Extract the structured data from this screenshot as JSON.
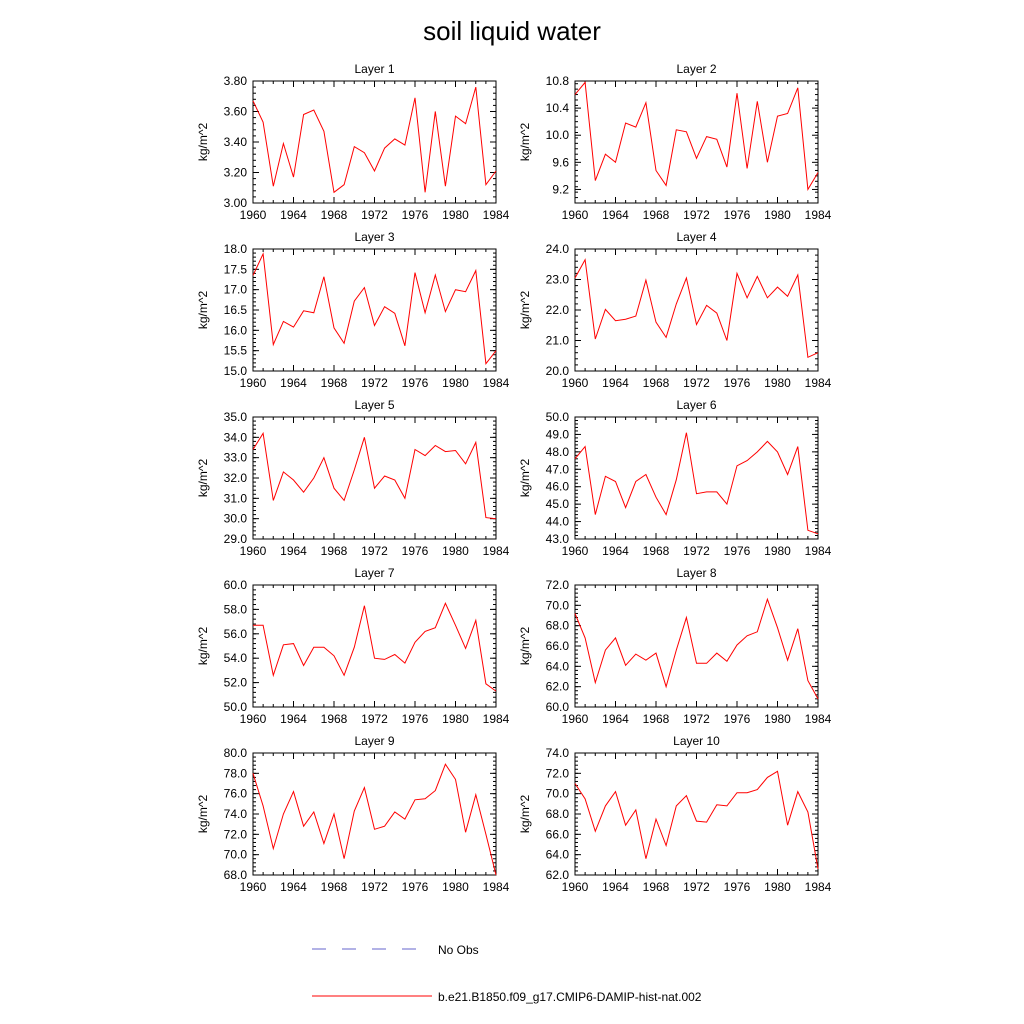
{
  "title": "soil liquid water",
  "legend": {
    "entries": [
      {
        "label": "No Obs",
        "color": "#6666cc",
        "style": "dashed"
      },
      {
        "label": "b.e21.B1850.f09_g17.CMIP6-DAMIP-hist-nat.002",
        "color": "#ff0000",
        "style": "solid"
      }
    ]
  },
  "chart_data": [
    {
      "type": "line",
      "title": "Layer 1",
      "ylabel": "kg/m^2",
      "xlim": [
        1960,
        1984
      ],
      "ylim": [
        3.0,
        3.8
      ],
      "xticks": [
        "1960",
        "1964",
        "1968",
        "1972",
        "1976",
        "1980",
        "1984"
      ],
      "yticks": [
        "3.00",
        "3.20",
        "3.40",
        "3.60",
        "3.80"
      ],
      "x": [
        1960,
        1961,
        1962,
        1963,
        1964,
        1965,
        1966,
        1967,
        1968,
        1969,
        1970,
        1971,
        1972,
        1973,
        1974,
        1975,
        1976,
        1977,
        1978,
        1979,
        1980,
        1981,
        1982,
        1983,
        1984
      ],
      "series": [
        {
          "name": "b.e21.B1850.f09_g17.CMIP6-DAMIP-hist-nat.002",
          "color": "#ff0000",
          "values": [
            3.67,
            3.53,
            3.11,
            3.39,
            3.17,
            3.58,
            3.61,
            3.47,
            3.07,
            3.12,
            3.37,
            3.33,
            3.21,
            3.36,
            3.42,
            3.38,
            3.69,
            3.07,
            3.6,
            3.11,
            3.57,
            3.52,
            3.76,
            3.12,
            3.21
          ]
        }
      ]
    },
    {
      "type": "line",
      "title": "Layer 2",
      "ylabel": "kg/m^2",
      "xlim": [
        1960,
        1984
      ],
      "ylim": [
        9.0,
        10.8
      ],
      "xticks": [
        "1960",
        "1964",
        "1968",
        "1972",
        "1976",
        "1980",
        "1984"
      ],
      "yticks": [
        "9.2",
        "9.6",
        "10.0",
        "10.4",
        "10.8"
      ],
      "x": [
        1960,
        1961,
        1962,
        1963,
        1964,
        1965,
        1966,
        1967,
        1968,
        1969,
        1970,
        1971,
        1972,
        1973,
        1974,
        1975,
        1976,
        1977,
        1978,
        1979,
        1980,
        1981,
        1982,
        1983,
        1984
      ],
      "series": [
        {
          "name": "b.e21.B1850.f09_g17.CMIP6-DAMIP-hist-nat.002",
          "color": "#ff0000",
          "values": [
            10.6,
            10.78,
            9.33,
            9.72,
            9.6,
            10.18,
            10.12,
            10.48,
            9.48,
            9.26,
            10.08,
            10.05,
            9.66,
            9.98,
            9.94,
            9.53,
            10.62,
            9.51,
            10.5,
            9.6,
            10.28,
            10.32,
            10.7,
            9.2,
            9.45
          ]
        }
      ]
    },
    {
      "type": "line",
      "title": "Layer 3",
      "ylabel": "kg/m^2",
      "xlim": [
        1960,
        1984
      ],
      "ylim": [
        15.0,
        18.0
      ],
      "xticks": [
        "1960",
        "1964",
        "1968",
        "1972",
        "1976",
        "1980",
        "1984"
      ],
      "yticks": [
        "15.0",
        "15.5",
        "16.0",
        "16.5",
        "17.0",
        "17.5",
        "18.0"
      ],
      "x": [
        1960,
        1961,
        1962,
        1963,
        1964,
        1965,
        1966,
        1967,
        1968,
        1969,
        1970,
        1971,
        1972,
        1973,
        1974,
        1975,
        1976,
        1977,
        1978,
        1979,
        1980,
        1981,
        1982,
        1983,
        1984
      ],
      "series": [
        {
          "name": "b.e21.B1850.f09_g17.CMIP6-DAMIP-hist-nat.002",
          "color": "#ff0000",
          "values": [
            17.35,
            17.88,
            15.65,
            16.22,
            16.08,
            16.48,
            16.43,
            17.32,
            16.06,
            15.68,
            16.72,
            17.05,
            16.12,
            16.58,
            16.42,
            15.62,
            17.42,
            16.43,
            17.36,
            16.46,
            17.0,
            16.95,
            17.47,
            15.18,
            15.5
          ]
        }
      ]
    },
    {
      "type": "line",
      "title": "Layer 4",
      "ylabel": "kg/m^2",
      "xlim": [
        1960,
        1984
      ],
      "ylim": [
        20.0,
        24.0
      ],
      "xticks": [
        "1960",
        "1964",
        "1968",
        "1972",
        "1976",
        "1980",
        "1984"
      ],
      "yticks": [
        "20.0",
        "21.0",
        "22.0",
        "23.0",
        "24.0"
      ],
      "x": [
        1960,
        1961,
        1962,
        1963,
        1964,
        1965,
        1966,
        1967,
        1968,
        1969,
        1970,
        1971,
        1972,
        1973,
        1974,
        1975,
        1976,
        1977,
        1978,
        1979,
        1980,
        1981,
        1982,
        1983,
        1984
      ],
      "series": [
        {
          "name": "b.e21.B1850.f09_g17.CMIP6-DAMIP-hist-nat.002",
          "color": "#ff0000",
          "values": [
            23.05,
            23.65,
            21.05,
            22.02,
            21.65,
            21.7,
            21.8,
            22.98,
            21.6,
            21.1,
            22.2,
            23.05,
            21.52,
            22.15,
            21.9,
            21.0,
            23.2,
            22.4,
            23.1,
            22.4,
            22.75,
            22.45,
            23.15,
            20.45,
            20.6
          ]
        }
      ]
    },
    {
      "type": "line",
      "title": "Layer 5",
      "ylabel": "kg/m^2",
      "xlim": [
        1960,
        1984
      ],
      "ylim": [
        29.0,
        35.0
      ],
      "xticks": [
        "1960",
        "1964",
        "1968",
        "1972",
        "1976",
        "1980",
        "1984"
      ],
      "yticks": [
        "29.0",
        "30.0",
        "31.0",
        "32.0",
        "33.0",
        "34.0",
        "35.0"
      ],
      "x": [
        1960,
        1961,
        1962,
        1963,
        1964,
        1965,
        1966,
        1967,
        1968,
        1969,
        1970,
        1971,
        1972,
        1973,
        1974,
        1975,
        1976,
        1977,
        1978,
        1979,
        1980,
        1981,
        1982,
        1983,
        1984
      ],
      "series": [
        {
          "name": "b.e21.B1850.f09_g17.CMIP6-DAMIP-hist-nat.002",
          "color": "#ff0000",
          "values": [
            33.4,
            34.2,
            30.9,
            32.3,
            31.9,
            31.3,
            32.0,
            33.0,
            31.5,
            30.9,
            32.4,
            34.0,
            31.5,
            32.1,
            31.9,
            31.0,
            33.4,
            33.1,
            33.6,
            33.3,
            33.35,
            32.7,
            33.75,
            30.05,
            30.0
          ]
        }
      ]
    },
    {
      "type": "line",
      "title": "Layer 6",
      "ylabel": "kg/m^2",
      "xlim": [
        1960,
        1984
      ],
      "ylim": [
        43.0,
        50.0
      ],
      "xticks": [
        "1960",
        "1964",
        "1968",
        "1972",
        "1976",
        "1980",
        "1984"
      ],
      "yticks": [
        "43.0",
        "44.0",
        "45.0",
        "46.0",
        "47.0",
        "48.0",
        "49.0",
        "50.0"
      ],
      "x": [
        1960,
        1961,
        1962,
        1963,
        1964,
        1965,
        1966,
        1967,
        1968,
        1969,
        1970,
        1971,
        1972,
        1973,
        1974,
        1975,
        1976,
        1977,
        1978,
        1979,
        1980,
        1981,
        1982,
        1983,
        1984
      ],
      "series": [
        {
          "name": "b.e21.B1850.f09_g17.CMIP6-DAMIP-hist-nat.002",
          "color": "#ff0000",
          "values": [
            47.6,
            48.3,
            44.4,
            46.6,
            46.3,
            44.8,
            46.3,
            46.7,
            45.4,
            44.4,
            46.4,
            49.1,
            45.6,
            45.7,
            45.7,
            45.0,
            47.2,
            47.5,
            48.0,
            48.6,
            48.0,
            46.7,
            48.3,
            43.5,
            43.3
          ]
        }
      ]
    },
    {
      "type": "line",
      "title": "Layer 7",
      "ylabel": "kg/m^2",
      "xlim": [
        1960,
        1984
      ],
      "ylim": [
        50.0,
        60.0
      ],
      "xticks": [
        "1960",
        "1964",
        "1968",
        "1972",
        "1976",
        "1980",
        "1984"
      ],
      "yticks": [
        "50.0",
        "52.0",
        "54.0",
        "56.0",
        "58.0",
        "60.0"
      ],
      "x": [
        1960,
        1961,
        1962,
        1963,
        1964,
        1965,
        1966,
        1967,
        1968,
        1969,
        1970,
        1971,
        1972,
        1973,
        1974,
        1975,
        1976,
        1977,
        1978,
        1979,
        1980,
        1981,
        1982,
        1983,
        1984
      ],
      "series": [
        {
          "name": "b.e21.B1850.f09_g17.CMIP6-DAMIP-hist-nat.002",
          "color": "#ff0000",
          "values": [
            56.7,
            56.7,
            52.6,
            55.1,
            55.2,
            53.4,
            54.9,
            54.9,
            54.2,
            52.6,
            54.9,
            58.3,
            54.0,
            53.9,
            54.3,
            53.6,
            55.3,
            56.2,
            56.5,
            58.5,
            56.7,
            54.8,
            57.1,
            51.9,
            51.3
          ]
        }
      ]
    },
    {
      "type": "line",
      "title": "Layer 8",
      "ylabel": "kg/m^2",
      "xlim": [
        1960,
        1984
      ],
      "ylim": [
        60.0,
        72.0
      ],
      "xticks": [
        "1960",
        "1964",
        "1968",
        "1972",
        "1976",
        "1980",
        "1984"
      ],
      "yticks": [
        "60.0",
        "62.0",
        "64.0",
        "66.0",
        "68.0",
        "70.0",
        "72.0"
      ],
      "x": [
        1960,
        1961,
        1962,
        1963,
        1964,
        1965,
        1966,
        1967,
        1968,
        1969,
        1970,
        1971,
        1972,
        1973,
        1974,
        1975,
        1976,
        1977,
        1978,
        1979,
        1980,
        1981,
        1982,
        1983,
        1984
      ],
      "series": [
        {
          "name": "b.e21.B1850.f09_g17.CMIP6-DAMIP-hist-nat.002",
          "color": "#ff0000",
          "values": [
            69.2,
            66.8,
            62.4,
            65.6,
            66.8,
            64.1,
            65.2,
            64.6,
            65.3,
            62.0,
            65.6,
            68.8,
            64.3,
            64.3,
            65.3,
            64.5,
            66.1,
            67.0,
            67.4,
            70.6,
            67.8,
            64.6,
            67.7,
            62.6,
            60.8
          ]
        }
      ]
    },
    {
      "type": "line",
      "title": "Layer 9",
      "ylabel": "kg/m^2",
      "xlim": [
        1960,
        1984
      ],
      "ylim": [
        68.0,
        80.0
      ],
      "xticks": [
        "1960",
        "1964",
        "1968",
        "1972",
        "1976",
        "1980",
        "1984"
      ],
      "yticks": [
        "68.0",
        "70.0",
        "72.0",
        "74.0",
        "76.0",
        "78.0",
        "80.0"
      ],
      "x": [
        1960,
        1961,
        1962,
        1963,
        1964,
        1965,
        1966,
        1967,
        1968,
        1969,
        1970,
        1971,
        1972,
        1973,
        1974,
        1975,
        1976,
        1977,
        1978,
        1979,
        1980,
        1981,
        1982,
        1983,
        1984
      ],
      "series": [
        {
          "name": "b.e21.B1850.f09_g17.CMIP6-DAMIP-hist-nat.002",
          "color": "#ff0000",
          "values": [
            78.0,
            74.8,
            70.6,
            74.0,
            76.2,
            72.8,
            74.2,
            71.1,
            74.0,
            69.6,
            74.3,
            76.6,
            72.5,
            72.8,
            74.2,
            73.5,
            75.4,
            75.5,
            76.3,
            78.9,
            77.4,
            72.2,
            75.9,
            72.0,
            68.0
          ]
        }
      ]
    },
    {
      "type": "line",
      "title": "Layer 10",
      "ylabel": "kg/m^2",
      "xlim": [
        1960,
        1984
      ],
      "ylim": [
        62.0,
        74.0
      ],
      "xticks": [
        "1960",
        "1964",
        "1968",
        "1972",
        "1976",
        "1980",
        "1984"
      ],
      "yticks": [
        "62.0",
        "64.0",
        "66.0",
        "68.0",
        "70.0",
        "72.0",
        "74.0"
      ],
      "x": [
        1960,
        1961,
        1962,
        1963,
        1964,
        1965,
        1966,
        1967,
        1968,
        1969,
        1970,
        1971,
        1972,
        1973,
        1974,
        1975,
        1976,
        1977,
        1978,
        1979,
        1980,
        1981,
        1982,
        1983,
        1984
      ],
      "series": [
        {
          "name": "b.e21.B1850.f09_g17.CMIP6-DAMIP-hist-nat.002",
          "color": "#ff0000",
          "values": [
            71.0,
            69.5,
            66.3,
            68.8,
            70.2,
            66.9,
            68.4,
            63.6,
            67.5,
            64.9,
            68.8,
            69.8,
            67.3,
            67.2,
            68.9,
            68.8,
            70.1,
            70.1,
            70.4,
            71.6,
            72.2,
            66.9,
            70.2,
            68.2,
            62.6
          ]
        }
      ]
    }
  ]
}
